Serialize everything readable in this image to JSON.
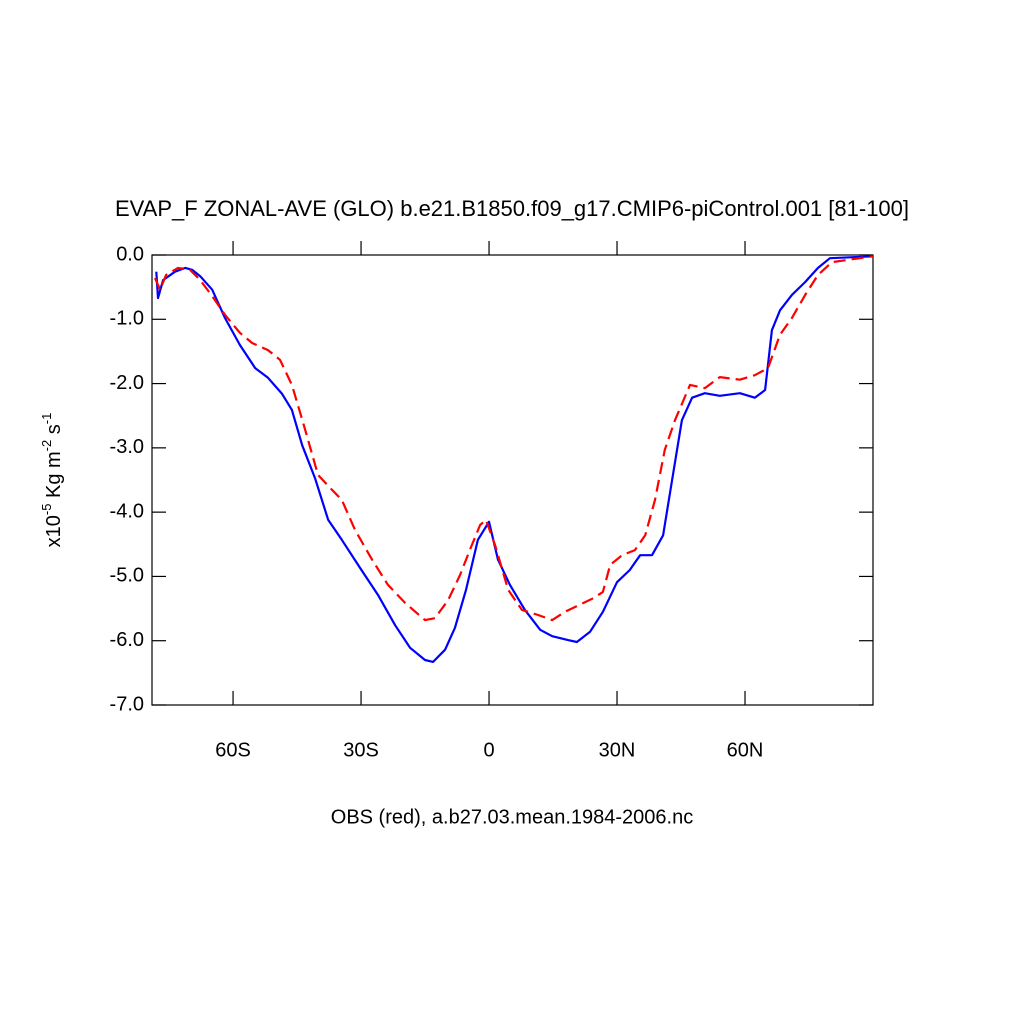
{
  "chart_data": {
    "type": "line",
    "title": "EVAP_F ZONAL-AVE (GLO) b.e21.B1850.f09_g17.CMIP6-piControl.001 [81-100]",
    "xlabel": "OBS (red), a.b27.03.mean.1984-2006.nc",
    "ylabel": [
      "x10",
      "-5",
      " Kg m",
      "-2",
      " s",
      "-1"
    ],
    "xlim": [
      -79,
      90
    ],
    "xticks": [
      {
        "value": -60,
        "label": "60S"
      },
      {
        "value": -30,
        "label": "30S"
      },
      0,
      {
        "value": 30,
        "label": "30N"
      },
      {
        "value": 60,
        "label": "60N"
      }
    ],
    "ylim": [
      -7,
      0
    ],
    "yticks": [
      {
        "value": 0,
        "label": "0.0"
      },
      {
        "value": -1,
        "label": "-1.0"
      },
      {
        "value": -2,
        "label": "-2.0"
      },
      {
        "value": -3,
        "label": "-3.0"
      },
      {
        "value": -4,
        "label": "-4.0"
      },
      {
        "value": -5,
        "label": "-5.0"
      },
      {
        "value": -6,
        "label": "-6.0"
      },
      {
        "value": -7,
        "label": "-7.0"
      }
    ],
    "series": [
      {
        "color": "#0000ff",
        "dash": false,
        "x": [
          -78,
          -77.6,
          -76.4,
          -73.6,
          -71.2,
          -69.6,
          -67.7,
          -64.9,
          -61.9,
          -58.4,
          -54.8,
          -51.8,
          -48.5,
          -46.2,
          -43.8,
          -40.8,
          -37.7,
          -34.5,
          -30.2,
          -26,
          -22,
          -18.5,
          -15,
          -13.1,
          -10.3,
          -8,
          -5.4,
          -2.6,
          0,
          2.1,
          4.9,
          8.4,
          12,
          14.8,
          18.5,
          20.6,
          23.7,
          26.7,
          30,
          33,
          35.4,
          38.2,
          40.8,
          42.9,
          45.2,
          47.6,
          50.6,
          54.1,
          58.8,
          62.3,
          64.7,
          66.3,
          68.2,
          71,
          74.1,
          77.1,
          79.9,
          90
        ],
        "values": [
          -0.26,
          -0.67,
          -0.39,
          -0.26,
          -0.2,
          -0.23,
          -0.33,
          -0.54,
          -0.98,
          -1.4,
          -1.76,
          -1.91,
          -2.16,
          -2.41,
          -2.96,
          -3.47,
          -4.12,
          -4.43,
          -4.87,
          -5.29,
          -5.76,
          -6.11,
          -6.3,
          -6.33,
          -6.14,
          -5.8,
          -5.21,
          -4.43,
          -4.15,
          -4.74,
          -5.13,
          -5.52,
          -5.83,
          -5.93,
          -5.99,
          -6.02,
          -5.86,
          -5.55,
          -5.09,
          -4.9,
          -4.67,
          -4.67,
          -4.36,
          -3.5,
          -2.57,
          -2.22,
          -2.15,
          -2.19,
          -2.15,
          -2.22,
          -2.1,
          -1.17,
          -0.86,
          -0.62,
          -0.42,
          -0.2,
          -0.05,
          -0.02
        ]
      },
      {
        "color": "#ff0000",
        "dash": true,
        "x": [
          -78.3,
          -77.1,
          -75.7,
          -72.9,
          -70.1,
          -67.7,
          -64.9,
          -61.9,
          -58.4,
          -55.5,
          -51.8,
          -49,
          -46.2,
          -43.1,
          -40.1,
          -37.3,
          -34.5,
          -31.4,
          -27.4,
          -23.7,
          -19.7,
          -15,
          -12.7,
          -9.6,
          -6.8,
          -4.5,
          -2.1,
          -0.7,
          1.4,
          4.5,
          7.7,
          11.5,
          14.8,
          17.8,
          21.3,
          24.4,
          26.7,
          28.4,
          31.2,
          34.2,
          36.6,
          38.9,
          41.2,
          43.6,
          47.1,
          50.6,
          54.1,
          58.8,
          62.3,
          65.4,
          68.2,
          71,
          74.1,
          77.1,
          80.4,
          90
        ],
        "values": [
          -0.36,
          -0.54,
          -0.31,
          -0.2,
          -0.23,
          -0.39,
          -0.64,
          -0.93,
          -1.21,
          -1.37,
          -1.48,
          -1.63,
          -2.02,
          -2.72,
          -3.42,
          -3.62,
          -3.81,
          -4.28,
          -4.74,
          -5.13,
          -5.41,
          -5.68,
          -5.65,
          -5.37,
          -4.98,
          -4.59,
          -4.2,
          -4.12,
          -4.51,
          -5.21,
          -5.52,
          -5.6,
          -5.68,
          -5.55,
          -5.44,
          -5.34,
          -5.24,
          -4.82,
          -4.67,
          -4.59,
          -4.36,
          -3.81,
          -3.03,
          -2.57,
          -2.02,
          -2.07,
          -1.9,
          -1.94,
          -1.87,
          -1.76,
          -1.24,
          -0.98,
          -0.62,
          -0.31,
          -0.11,
          -0.02
        ]
      }
    ]
  }
}
